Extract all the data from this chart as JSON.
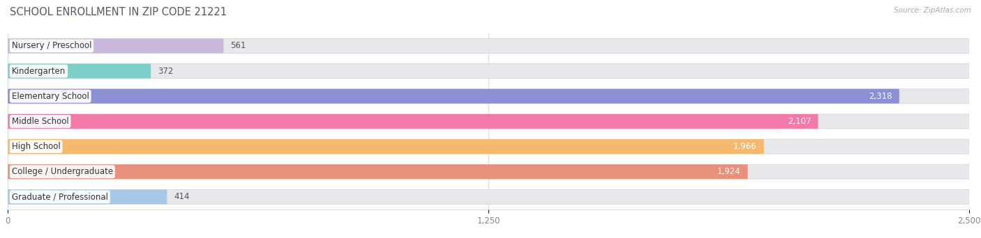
{
  "title": "SCHOOL ENROLLMENT IN ZIP CODE 21221",
  "source": "Source: ZipAtlas.com",
  "categories": [
    "Nursery / Preschool",
    "Kindergarten",
    "Elementary School",
    "Middle School",
    "High School",
    "College / Undergraduate",
    "Graduate / Professional"
  ],
  "values": [
    561,
    372,
    2318,
    2107,
    1966,
    1924,
    414
  ],
  "bar_colors": [
    "#c9b8dc",
    "#7dcfcc",
    "#8b8fd4",
    "#f07aaa",
    "#f5b96e",
    "#e8907a",
    "#a8c8e8"
  ],
  "bar_bg_color": "#e8e8ec",
  "bar_border_color": "#d0d0d8",
  "xlim": [
    0,
    2500
  ],
  "xticks": [
    0,
    1250,
    2500
  ],
  "title_fontsize": 10.5,
  "label_fontsize": 8.5,
  "value_fontsize": 8.5,
  "background_color": "#ffffff"
}
